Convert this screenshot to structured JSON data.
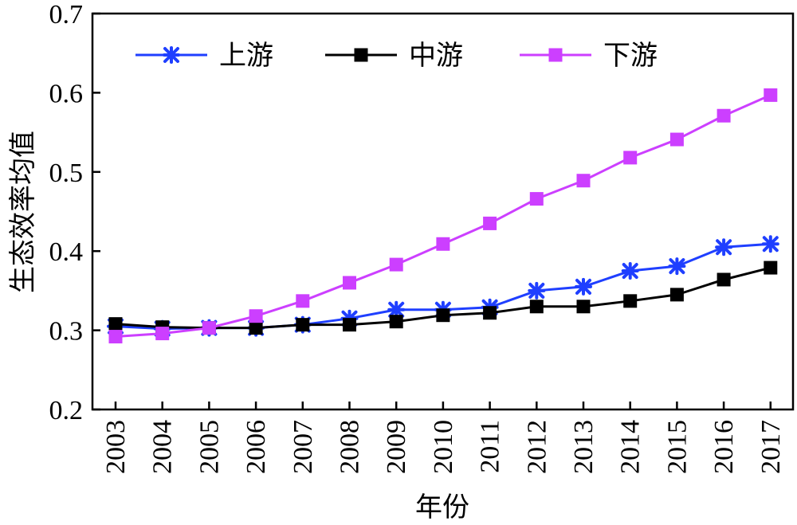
{
  "chart_data": {
    "type": "line",
    "title": "",
    "xlabel": "年份",
    "ylabel": "生态效率均值",
    "ylim": [
      0.2,
      0.7
    ],
    "yticks": [
      "0.2",
      "0.3",
      "0.4",
      "0.5",
      "0.6",
      "0.7"
    ],
    "categories": [
      "2003",
      "2004",
      "2005",
      "2006",
      "2007",
      "2008",
      "2009",
      "2010",
      "2011",
      "2012",
      "2013",
      "2014",
      "2015",
      "2016",
      "2017"
    ],
    "grid": false,
    "legend_position": "top",
    "series": [
      {
        "name": "上游",
        "color": "#1f3fff",
        "marker": "asterisk",
        "values": [
          0.305,
          0.302,
          0.303,
          0.303,
          0.307,
          0.315,
          0.326,
          0.326,
          0.329,
          0.35,
          0.355,
          0.375,
          0.381,
          0.405,
          0.409
        ]
      },
      {
        "name": "中游",
        "color": "#000000",
        "marker": "square",
        "values": [
          0.308,
          0.304,
          0.303,
          0.303,
          0.307,
          0.307,
          0.311,
          0.319,
          0.322,
          0.33,
          0.33,
          0.337,
          0.345,
          0.364,
          0.379
        ]
      },
      {
        "name": "下游",
        "color": "#cc3fff",
        "marker": "square",
        "values": [
          0.292,
          0.296,
          0.303,
          0.318,
          0.337,
          0.36,
          0.383,
          0.409,
          0.435,
          0.466,
          0.489,
          0.518,
          0.541,
          0.571,
          0.597
        ]
      }
    ]
  }
}
